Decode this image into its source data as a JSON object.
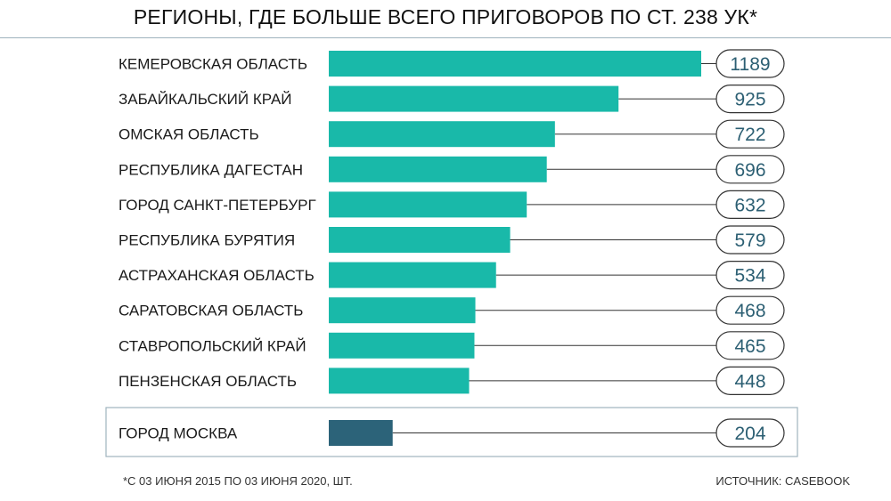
{
  "chart_data": {
    "type": "bar",
    "orientation": "horizontal",
    "title": "РЕГИОНЫ, ГДЕ БОЛЬШЕ ВСЕГО ПРИГОВОРОВ ПО СТ. 238 УК*",
    "categories": [
      "КЕМЕРОВСКАЯ ОБЛАСТЬ",
      "ЗАБАЙКАЛЬСКИЙ КРАЙ",
      "ОМСКАЯ ОБЛАСТЬ",
      "РЕСПУБЛИКА ДАГЕСТАН",
      "ГОРОД САНКТ-ПЕТЕРБУРГ",
      "РЕСПУБЛИКА БУРЯТИЯ",
      "АСТРАХАНСКАЯ ОБЛАСТЬ",
      "САРАТОВСКАЯ ОБЛАСТЬ",
      "СТАВРОПОЛЬСКИЙ КРАЙ",
      "ПЕНЗЕНСКАЯ ОБЛАСТЬ"
    ],
    "values": [
      1189,
      925,
      722,
      696,
      632,
      579,
      534,
      468,
      465,
      448
    ],
    "highlight": {
      "category": "ГОРОД МОСКВА",
      "value": 204
    },
    "xlim": [
      0,
      1189
    ],
    "bar_color": "#19b9a9",
    "highlight_color": "#2c6379",
    "footnote": "*С 03 ИЮНЯ 2015 ПО 03 ИЮНЯ 2020, ШТ.",
    "source": "ИСТОЧНИК: CASEBOOK"
  }
}
